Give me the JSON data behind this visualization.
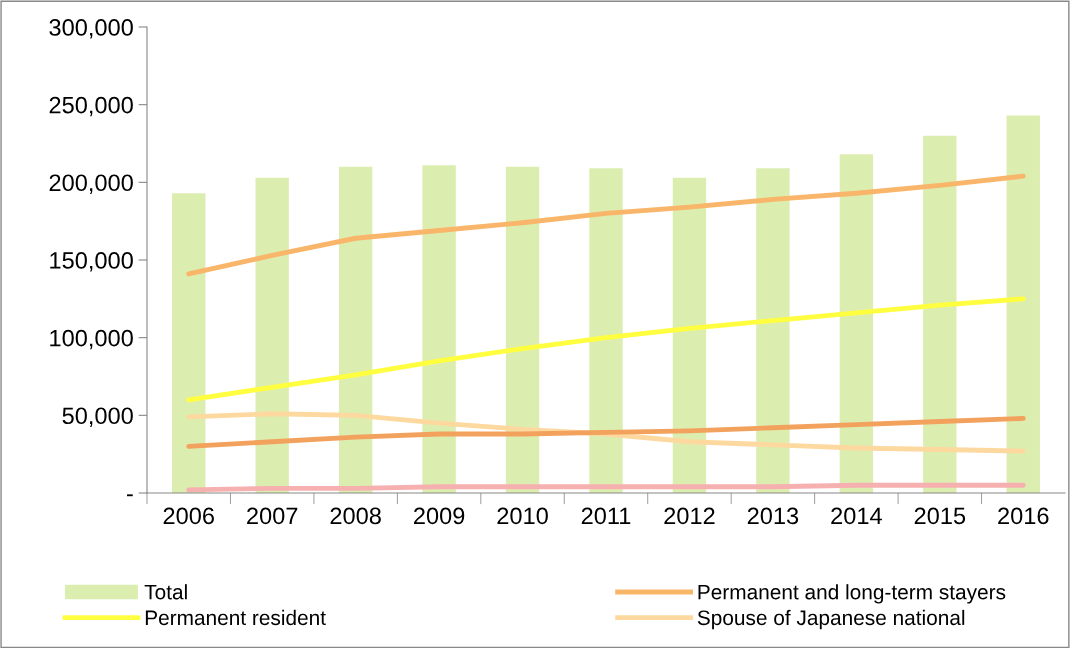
{
  "chart_data": {
    "type": "bar",
    "categories": [
      "2006",
      "2007",
      "2008",
      "2009",
      "2010",
      "2011",
      "2012",
      "2013",
      "2014",
      "2015",
      "2016"
    ],
    "series": [
      {
        "name": "Total",
        "color": "#dcedb0",
        "values": [
          193000,
          203000,
          210000,
          211000,
          210000,
          209000,
          203000,
          209000,
          218000,
          230000,
          243000
        ]
      },
      {
        "name": "Permanent and long-term stayers",
        "type": "line",
        "color": "#f9b56a",
        "values": [
          141000,
          153000,
          164000,
          169000,
          174000,
          180000,
          184000,
          189000,
          193000,
          198000,
          204000
        ]
      },
      {
        "name": "Permanent resident",
        "type": "line",
        "color": "#ffff40",
        "values": [
          60000,
          68000,
          76000,
          85000,
          93000,
          100000,
          106000,
          111000,
          116000,
          121000,
          125000
        ]
      },
      {
        "name": "Spouse of Japanese national",
        "type": "line",
        "color": "#fdd9a0",
        "values": [
          49000,
          51000,
          50000,
          45000,
          41000,
          38000,
          33000,
          31000,
          29000,
          28000,
          27000
        ]
      },
      {
        "type": "line",
        "color": "#f2a25d",
        "values": [
          30000,
          33000,
          36000,
          38000,
          38000,
          39000,
          40000,
          42000,
          44000,
          46000,
          48000
        ]
      },
      {
        "type": "line",
        "color": "#f7b0b0",
        "values": [
          2000,
          3000,
          3000,
          4000,
          4000,
          4000,
          4000,
          4000,
          5000,
          5000,
          5000
        ]
      }
    ],
    "ylim": [
      0,
      300000
    ],
    "yticks": [
      {
        "value": 0,
        "label": "-"
      },
      {
        "value": 50000,
        "label": "50,000"
      },
      {
        "value": 100000,
        "label": "100,000"
      },
      {
        "value": 150000,
        "label": "150,000"
      },
      {
        "value": 200000,
        "label": "200,000"
      },
      {
        "value": 250000,
        "label": "250,000"
      },
      {
        "value": 300000,
        "label": "300,000"
      }
    ],
    "grid": false,
    "legend": "bottom"
  }
}
